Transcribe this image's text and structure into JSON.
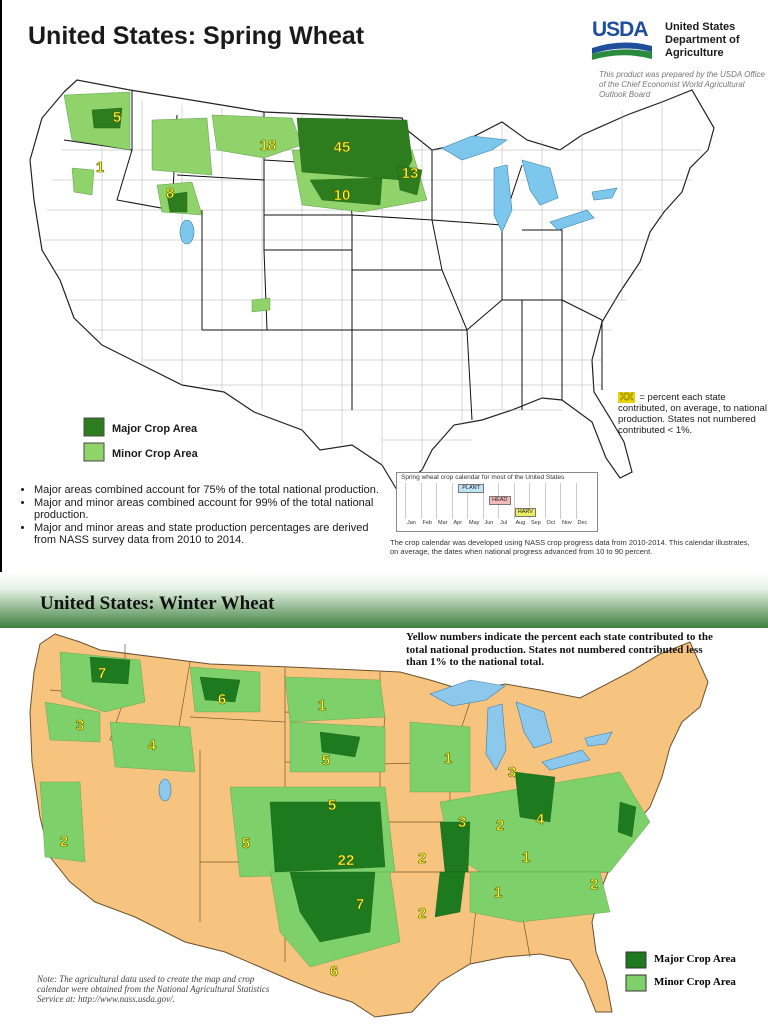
{
  "spring": {
    "title": "United States:  Spring Wheat",
    "usda": {
      "logo_text": "USDA",
      "agency_lines": [
        "United States",
        "Department of",
        "Agriculture"
      ],
      "prepared_note": "This product was prepared by the USDA Office of the Chief Economist World Agricultural Outlook Board"
    },
    "legend": {
      "major": "Major Crop Area",
      "minor": "Minor Crop Area"
    },
    "colors": {
      "major": "#2d7d1e",
      "minor": "#8fd36a",
      "land": "#ffffff",
      "water": "#7ec7ec",
      "label": "#ffff33"
    },
    "state_labels": [
      {
        "value": "5",
        "state": "WA"
      },
      {
        "value": "1",
        "state": "OR"
      },
      {
        "value": "8",
        "state": "ID"
      },
      {
        "value": "18",
        "state": "MT"
      },
      {
        "value": "45",
        "state": "ND"
      },
      {
        "value": "10",
        "state": "SD"
      },
      {
        "value": "13",
        "state": "MN"
      }
    ],
    "xx_badge": "XX",
    "xx_note": "= percent each state contributed, on average, to national production. States not numbered contributed < 1%.",
    "bullets": [
      "Major areas combined account for 75% of the total national production.",
      "Major and minor areas combined account for 99% of the total national production.",
      "Major and minor areas and state production percentages are derived from NASS survey data from 2010 to 2014."
    ],
    "calendar": {
      "title": "Spring wheat crop calendar for most of the United States",
      "months": [
        "Jan",
        "Feb",
        "Mar",
        "Apr",
        "May",
        "Jun",
        "Jul",
        "Aug",
        "Sep",
        "Oct",
        "Nov",
        "Dec"
      ],
      "stages": [
        {
          "label": "PLANT",
          "color": "#bfe3f7"
        },
        {
          "label": "HEAD",
          "color": "#f4b9b9"
        },
        {
          "label": "HARV",
          "color": "#eeee66"
        }
      ],
      "note": "The crop calendar was developed using NASS crop progress data from 2010-2014.  This calendar illustrates, on average, the dates when national progress advanced from 10 to 90 percent."
    }
  },
  "winter": {
    "title": "United States:  Winter Wheat",
    "note": "Yellow numbers indicate the percent each state contributed to the total national production.  States not numbered contributed less than 1% to the national total.",
    "legend": {
      "major": "Major Crop Area",
      "minor": "Minor Crop Area"
    },
    "colors": {
      "major": "#1e7a1e",
      "minor": "#7ed06a",
      "land": "#f6c47f",
      "water": "#8cc8ec",
      "label": "#ffff33"
    },
    "state_labels": [
      {
        "value": "7",
        "state": "WA"
      },
      {
        "value": "3",
        "state": "OR"
      },
      {
        "value": "4",
        "state": "ID"
      },
      {
        "value": "6",
        "state": "MT"
      },
      {
        "value": "2",
        "state": "CA"
      },
      {
        "value": "1",
        "state": "ND"
      },
      {
        "value": "5",
        "state": "SD"
      },
      {
        "value": "5",
        "state": "NE"
      },
      {
        "value": "5",
        "state": "CO"
      },
      {
        "value": "22",
        "state": "KS"
      },
      {
        "value": "7",
        "state": "OK"
      },
      {
        "value": "6",
        "state": "TX"
      },
      {
        "value": "1",
        "state": "WI"
      },
      {
        "value": "3",
        "state": "MI"
      },
      {
        "value": "3",
        "state": "IL"
      },
      {
        "value": "2",
        "state": "IN"
      },
      {
        "value": "4",
        "state": "OH"
      },
      {
        "value": "2",
        "state": "MO"
      },
      {
        "value": "1",
        "state": "KY"
      },
      {
        "value": "1",
        "state": "TN"
      },
      {
        "value": "2",
        "state": "AR"
      },
      {
        "value": "2",
        "state": "NC"
      }
    ],
    "footnote": "Note:  The agricultural data used to create the map and crop calendar were obtained from the National Agricultural Statistics Service at: http://www.nass.usda.gov/."
  }
}
